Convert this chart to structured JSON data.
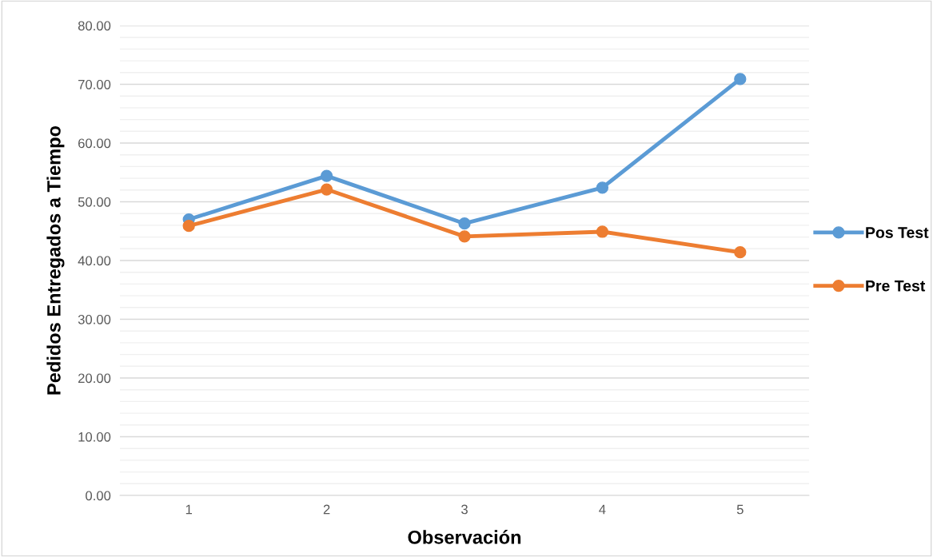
{
  "chart_data": {
    "type": "line",
    "xlabel": "Observación",
    "ylabel": "Pedidos Entregados a Tiempo",
    "categories": [
      "1",
      "2",
      "3",
      "4",
      "5"
    ],
    "series": [
      {
        "name": "Pos Test",
        "color": "#5b9bd5",
        "values": [
          47.0,
          54.4,
          46.3,
          52.4,
          70.9
        ]
      },
      {
        "name": "Pre Test",
        "color": "#ed7d31",
        "values": [
          45.9,
          52.1,
          44.1,
          44.9,
          41.4
        ]
      }
    ],
    "ylim": [
      0,
      80
    ],
    "yticks": [
      {
        "value": 0,
        "label": "0.00"
      },
      {
        "value": 2,
        "label": null
      },
      {
        "value": 4,
        "label": null
      },
      {
        "value": 6,
        "label": null
      },
      {
        "value": 8,
        "label": null
      },
      {
        "value": 10,
        "label": "10.00"
      },
      {
        "value": 12,
        "label": null
      },
      {
        "value": 14,
        "label": null
      },
      {
        "value": 16,
        "label": null
      },
      {
        "value": 18,
        "label": null
      },
      {
        "value": 20,
        "label": "20.00"
      },
      {
        "value": 22,
        "label": null
      },
      {
        "value": 24,
        "label": null
      },
      {
        "value": 26,
        "label": null
      },
      {
        "value": 28,
        "label": null
      },
      {
        "value": 30,
        "label": "30.00"
      },
      {
        "value": 32,
        "label": null
      },
      {
        "value": 34,
        "label": null
      },
      {
        "value": 36,
        "label": null
      },
      {
        "value": 38,
        "label": null
      },
      {
        "value": 40,
        "label": "40.00"
      },
      {
        "value": 42,
        "label": null
      },
      {
        "value": 44,
        "label": null
      },
      {
        "value": 46,
        "label": null
      },
      {
        "value": 48,
        "label": null
      },
      {
        "value": 50,
        "label": "50.00"
      },
      {
        "value": 52,
        "label": null
      },
      {
        "value": 54,
        "label": null
      },
      {
        "value": 56,
        "label": null
      },
      {
        "value": 58,
        "label": null
      },
      {
        "value": 60,
        "label": "60.00"
      },
      {
        "value": 62,
        "label": null
      },
      {
        "value": 64,
        "label": null
      },
      {
        "value": 66,
        "label": null
      },
      {
        "value": 68,
        "label": null
      },
      {
        "value": 70,
        "label": "70.00"
      },
      {
        "value": 72,
        "label": null
      },
      {
        "value": 74,
        "label": null
      },
      {
        "value": 76,
        "label": null
      },
      {
        "value": 78,
        "label": null
      },
      {
        "value": 80,
        "label": "80.00"
      }
    ],
    "grid": "y",
    "legend": "right",
    "marker": "circle",
    "line_style": "solid"
  }
}
